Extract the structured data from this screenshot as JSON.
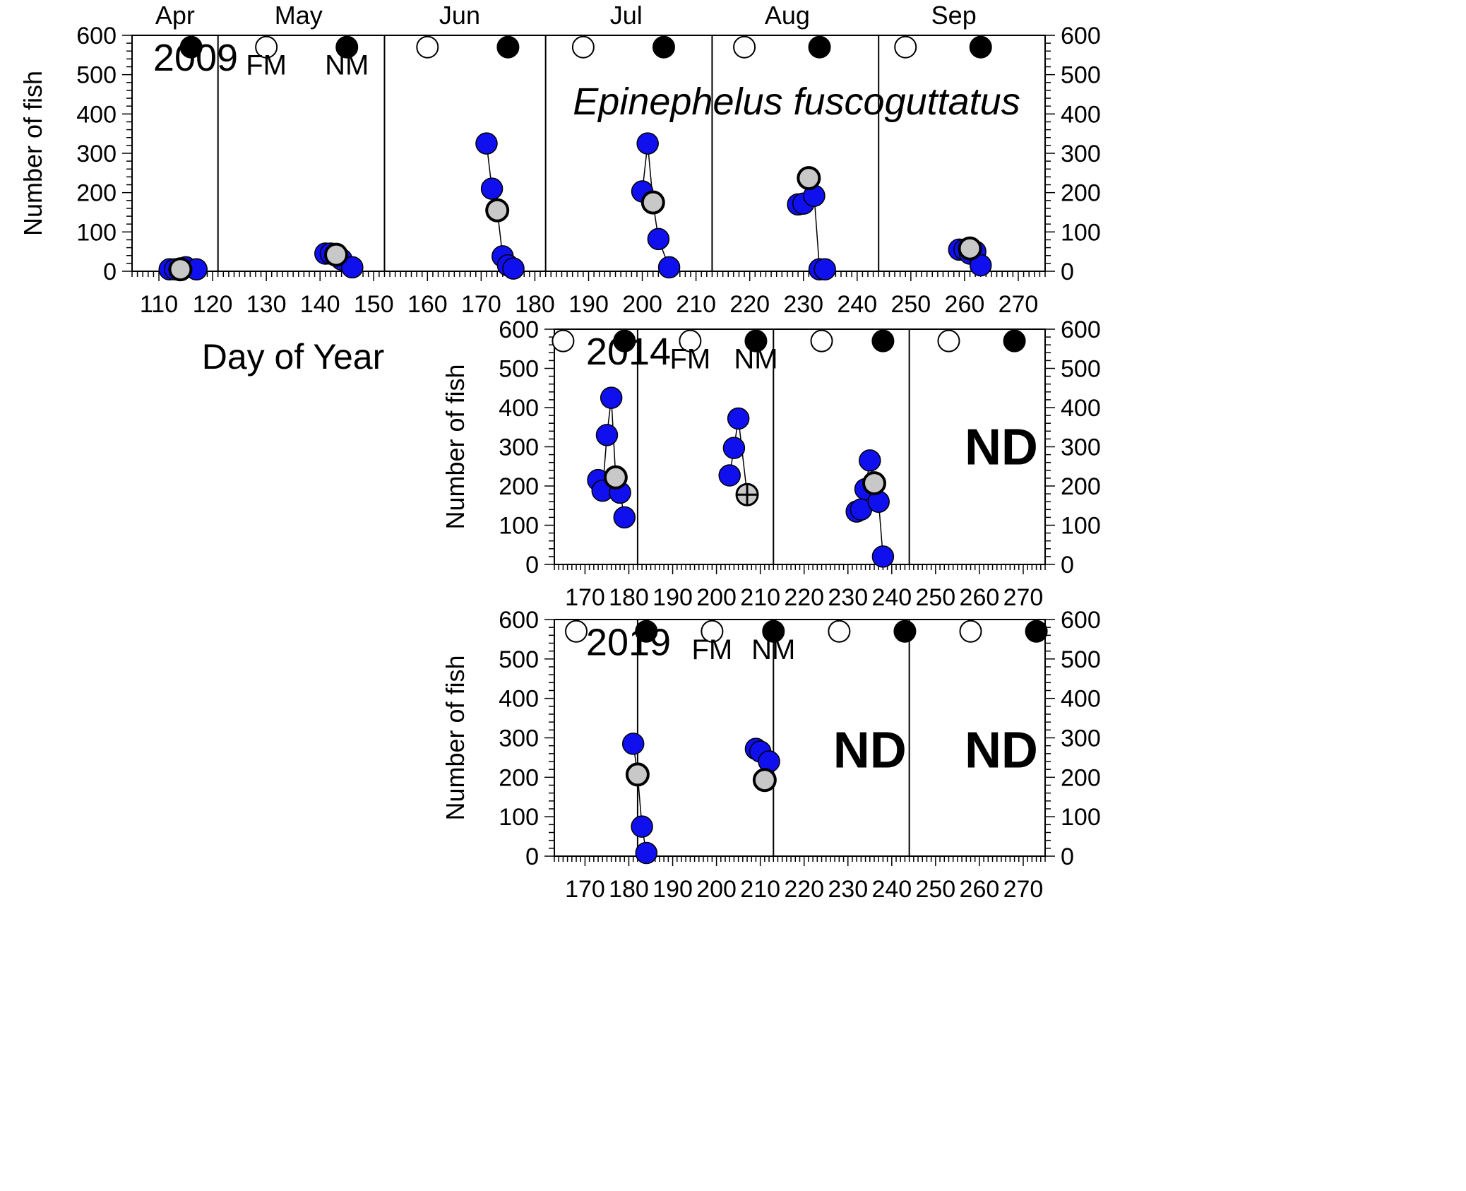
{
  "chart_data": [
    {
      "type": "scatter",
      "year": "2009",
      "species": "Epinephelus fuscoguttatus",
      "ylabel": "Number of fish",
      "xlabel": "Day of Year",
      "xlim": [
        105,
        275
      ],
      "ylim": [
        0,
        600
      ],
      "x_ticks": [
        110,
        120,
        130,
        140,
        150,
        160,
        170,
        180,
        190,
        200,
        210,
        220,
        230,
        240,
        250,
        260,
        270
      ],
      "y_ticks": [
        0,
        100,
        200,
        300,
        400,
        500,
        600
      ],
      "month_boundaries": [
        121,
        152,
        182,
        213,
        244
      ],
      "months": [
        {
          "label": "Apr",
          "center": 113
        },
        {
          "label": "May",
          "center": 136
        },
        {
          "label": "Jun",
          "center": 166
        },
        {
          "label": "Jul",
          "center": 197
        },
        {
          "label": "Aug",
          "center": 227
        },
        {
          "label": "Sep",
          "center": 258
        }
      ],
      "full_moons": [
        130,
        160,
        189,
        219,
        249
      ],
      "new_moons": [
        116,
        145,
        175,
        204,
        233,
        263
      ],
      "moon_y": 570,
      "moon_labels": [
        {
          "text": "FM",
          "x": 130
        },
        {
          "text": "NM",
          "x": 145
        }
      ],
      "series": [
        {
          "points": [
            [
              112,
              5
            ],
            [
              113,
              5
            ],
            [
              115,
              10
            ],
            [
              117,
              5
            ]
          ],
          "gray": [
            [
              114,
              5
            ]
          ]
        },
        {
          "points": [
            [
              141,
              45
            ],
            [
              142,
              45
            ],
            [
              144,
              30
            ],
            [
              146,
              10
            ]
          ],
          "gray": [
            [
              143,
              42
            ]
          ]
        },
        {
          "points": [
            [
              171,
              325
            ],
            [
              172,
              210
            ],
            [
              174,
              38
            ],
            [
              175,
              15
            ],
            [
              176,
              7
            ]
          ],
          "gray": [
            [
              173,
              155
            ]
          ]
        },
        {
          "points": [
            [
              200,
              203
            ],
            [
              201,
              325
            ],
            [
              203,
              82
            ],
            [
              205,
              10
            ]
          ],
          "gray": [
            [
              202,
              175
            ]
          ]
        },
        {
          "points": [
            [
              229,
              170
            ],
            [
              230,
              172
            ],
            [
              232,
              192
            ],
            [
              233,
              5
            ],
            [
              234,
              5
            ]
          ],
          "gray": [
            [
              231,
              237
            ]
          ]
        },
        {
          "points": [
            [
              259,
              55
            ],
            [
              260,
              55
            ],
            [
              261,
              45
            ],
            [
              262,
              50
            ],
            [
              263,
              15
            ]
          ],
          "gray": [
            [
              261,
              58
            ]
          ]
        }
      ],
      "nd_months": []
    },
    {
      "type": "scatter",
      "year": "2014",
      "ylabel": "Number of fish",
      "xlim": [
        163,
        275
      ],
      "ylim": [
        0,
        600
      ],
      "x_ticks": [
        170,
        180,
        190,
        200,
        210,
        220,
        230,
        240,
        250,
        260,
        270
      ],
      "y_ticks": [
        0,
        100,
        200,
        300,
        400,
        500,
        600
      ],
      "month_boundaries": [
        182,
        213,
        244
      ],
      "full_moons": [
        165,
        194,
        224,
        253
      ],
      "new_moons": [
        179,
        209,
        238,
        268
      ],
      "moon_y": 570,
      "moon_labels": [
        {
          "text": "FM",
          "x": 194
        },
        {
          "text": "NM",
          "x": 209
        }
      ],
      "series": [
        {
          "points": [
            [
              173,
              215
            ],
            [
              174,
              188
            ],
            [
              175,
              330
            ],
            [
              176,
              425
            ],
            [
              178,
              183
            ],
            [
              179,
              120
            ]
          ],
          "gray": [
            [
              177,
              222
            ]
          ]
        },
        {
          "points": [
            [
              203,
              227
            ],
            [
              204,
              297
            ],
            [
              205,
              372
            ]
          ],
          "gray": [],
          "cross": [
            [
              207,
              178
            ]
          ]
        },
        {
          "points": [
            [
              232,
              135
            ],
            [
              233,
              140
            ],
            [
              234,
              192
            ],
            [
              235,
              265
            ],
            [
              237,
              160
            ],
            [
              238,
              20
            ]
          ],
          "gray": [
            [
              236,
              207
            ]
          ]
        }
      ],
      "nd_months": [
        {
          "label": "ND",
          "x": 265,
          "y": 300
        }
      ]
    },
    {
      "type": "scatter",
      "year": "2019",
      "ylabel": "Number of fish",
      "xlim": [
        163,
        275
      ],
      "ylim": [
        0,
        600
      ],
      "x_ticks": [
        170,
        180,
        190,
        200,
        210,
        220,
        230,
        240,
        250,
        260,
        270
      ],
      "y_ticks": [
        0,
        100,
        200,
        300,
        400,
        500,
        600
      ],
      "month_boundaries": [
        182,
        213,
        244
      ],
      "full_moons": [
        168,
        199,
        228,
        258
      ],
      "new_moons": [
        184,
        213,
        243,
        273
      ],
      "moon_y": 570,
      "moon_labels": [
        {
          "text": "FM",
          "x": 199
        },
        {
          "text": "NM",
          "x": 213
        }
      ],
      "series": [
        {
          "points": [
            [
              181,
              285
            ],
            [
              183,
              75
            ],
            [
              184,
              8
            ]
          ],
          "gray": [
            [
              182,
              207
            ]
          ]
        },
        {
          "points": [
            [
              209,
              272
            ],
            [
              210,
              265
            ],
            [
              212,
              240
            ]
          ],
          "gray": [
            [
              211,
              193
            ]
          ]
        }
      ],
      "nd_months": [
        {
          "label": "ND",
          "x": 235,
          "y": 270
        },
        {
          "label": "ND",
          "x": 265,
          "y": 270
        }
      ]
    }
  ],
  "colors": {
    "data_point": "#1010ee",
    "gray_point": "#c8c8c8",
    "new_moon": "#000000",
    "full_moon": "#ffffff"
  }
}
